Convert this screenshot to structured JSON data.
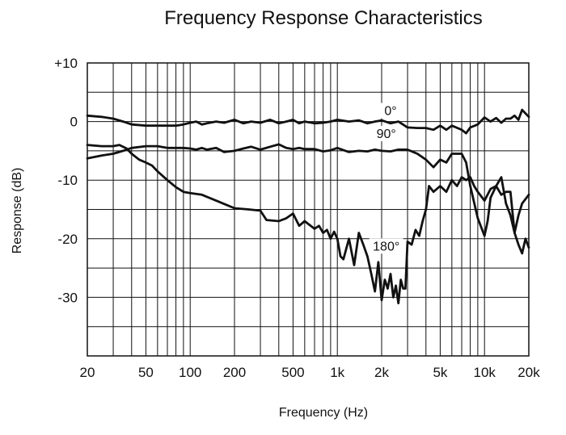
{
  "chart_data": {
    "type": "line",
    "title": "Frequency Response Characteristics",
    "xlabel": "Frequency (Hz)",
    "ylabel": "Response (dB)",
    "x_scale": "log",
    "xlim": [
      20,
      20000
    ],
    "ylim": [
      -40,
      10
    ],
    "grid": true,
    "x_ticks": [
      {
        "value": 20,
        "label": "20"
      },
      {
        "value": 50,
        "label": "50"
      },
      {
        "value": 100,
        "label": "100"
      },
      {
        "value": 200,
        "label": "200"
      },
      {
        "value": 500,
        "label": "500"
      },
      {
        "value": 1000,
        "label": "1k"
      },
      {
        "value": 2000,
        "label": "2k"
      },
      {
        "value": 5000,
        "label": "5k"
      },
      {
        "value": 10000,
        "label": "10k"
      },
      {
        "value": 20000,
        "label": "20k"
      }
    ],
    "y_ticks": [
      {
        "value": 10,
        "label": "+10"
      },
      {
        "value": 0,
        "label": "0"
      },
      {
        "value": -10,
        "label": "-10"
      },
      {
        "value": -20,
        "label": "-20"
      },
      {
        "value": -30,
        "label": "-30"
      }
    ],
    "series": [
      {
        "name": "0°",
        "label_at": [
          2300,
          1.1
        ],
        "points": [
          [
            20,
            1.0
          ],
          [
            25,
            0.8
          ],
          [
            30,
            0.5
          ],
          [
            35,
            0.0
          ],
          [
            40,
            -0.5
          ],
          [
            50,
            -0.7
          ],
          [
            60,
            -0.7
          ],
          [
            70,
            -0.7
          ],
          [
            80,
            -0.7
          ],
          [
            90,
            -0.5
          ],
          [
            100,
            -0.2
          ],
          [
            110,
            0.0
          ],
          [
            120,
            -0.5
          ],
          [
            130,
            -0.3
          ],
          [
            150,
            0.0
          ],
          [
            170,
            -0.2
          ],
          [
            200,
            0.3
          ],
          [
            230,
            -0.3
          ],
          [
            260,
            0.0
          ],
          [
            300,
            -0.2
          ],
          [
            350,
            0.3
          ],
          [
            400,
            -0.3
          ],
          [
            450,
            0.0
          ],
          [
            500,
            0.3
          ],
          [
            550,
            -0.3
          ],
          [
            600,
            0.0
          ],
          [
            700,
            -0.3
          ],
          [
            800,
            -0.2
          ],
          [
            900,
            0.0
          ],
          [
            1000,
            0.3
          ],
          [
            1200,
            0.0
          ],
          [
            1400,
            0.2
          ],
          [
            1600,
            -0.3
          ],
          [
            1800,
            0.0
          ],
          [
            2000,
            0.2
          ],
          [
            2300,
            -0.3
          ],
          [
            2600,
            0.0
          ],
          [
            3000,
            -1.0
          ],
          [
            3500,
            -1.1
          ],
          [
            4000,
            -1.1
          ],
          [
            4500,
            -1.4
          ],
          [
            5000,
            -0.7
          ],
          [
            5500,
            -1.4
          ],
          [
            6000,
            -0.7
          ],
          [
            7000,
            -1.4
          ],
          [
            7500,
            -2.0
          ],
          [
            8000,
            -1.0
          ],
          [
            9000,
            -0.5
          ],
          [
            10000,
            0.7
          ],
          [
            11000,
            0.0
          ],
          [
            12000,
            0.6
          ],
          [
            13000,
            -0.2
          ],
          [
            14000,
            0.5
          ],
          [
            15000,
            0.5
          ],
          [
            16000,
            1.0
          ],
          [
            17000,
            0.3
          ],
          [
            18000,
            2.0
          ],
          [
            20000,
            0.8
          ]
        ]
      },
      {
        "name": "90°",
        "label_at": [
          2150,
          -2.8
        ],
        "points": [
          [
            20,
            -6.3
          ],
          [
            25,
            -5.8
          ],
          [
            30,
            -5.5
          ],
          [
            35,
            -5.0
          ],
          [
            40,
            -4.5
          ],
          [
            50,
            -4.2
          ],
          [
            60,
            -4.2
          ],
          [
            70,
            -4.5
          ],
          [
            80,
            -4.5
          ],
          [
            90,
            -4.5
          ],
          [
            100,
            -4.6
          ],
          [
            110,
            -4.8
          ],
          [
            120,
            -4.5
          ],
          [
            130,
            -4.8
          ],
          [
            150,
            -4.5
          ],
          [
            170,
            -5.2
          ],
          [
            200,
            -5.0
          ],
          [
            230,
            -4.6
          ],
          [
            260,
            -4.3
          ],
          [
            300,
            -4.8
          ],
          [
            350,
            -4.3
          ],
          [
            400,
            -3.9
          ],
          [
            450,
            -4.5
          ],
          [
            500,
            -4.7
          ],
          [
            550,
            -4.5
          ],
          [
            600,
            -4.7
          ],
          [
            700,
            -4.7
          ],
          [
            800,
            -5.1
          ],
          [
            900,
            -4.9
          ],
          [
            1000,
            -4.5
          ],
          [
            1200,
            -5.2
          ],
          [
            1400,
            -5.0
          ],
          [
            1600,
            -5.1
          ],
          [
            1800,
            -4.8
          ],
          [
            2000,
            -5.0
          ],
          [
            2300,
            -5.1
          ],
          [
            2600,
            -4.8
          ],
          [
            3000,
            -4.8
          ],
          [
            3500,
            -5.5
          ],
          [
            4000,
            -6.5
          ],
          [
            4500,
            -7.8
          ],
          [
            5000,
            -6.5
          ],
          [
            5500,
            -7.0
          ],
          [
            6000,
            -5.5
          ],
          [
            7000,
            -5.5
          ],
          [
            7500,
            -7.0
          ],
          [
            8000,
            -11.0
          ],
          [
            9000,
            -16.5
          ],
          [
            10000,
            -19.5
          ],
          [
            10500,
            -17.0
          ],
          [
            11000,
            -13.0
          ],
          [
            12000,
            -11.0
          ],
          [
            13000,
            -9.5
          ],
          [
            14000,
            -14.0
          ],
          [
            15000,
            -16.0
          ],
          [
            16000,
            -19.0
          ],
          [
            17000,
            -21.0
          ],
          [
            18000,
            -22.5
          ],
          [
            19000,
            -20.0
          ],
          [
            20000,
            -21.5
          ]
        ]
      },
      {
        "name": "180°",
        "label_at": [
          2150,
          -22.0
        ],
        "points": [
          [
            20,
            -4.0
          ],
          [
            25,
            -4.2
          ],
          [
            30,
            -4.2
          ],
          [
            33,
            -4.0
          ],
          [
            37,
            -4.6
          ],
          [
            40,
            -5.5
          ],
          [
            45,
            -6.5
          ],
          [
            50,
            -7.0
          ],
          [
            55,
            -7.5
          ],
          [
            60,
            -8.5
          ],
          [
            70,
            -10.0
          ],
          [
            80,
            -11.2
          ],
          [
            90,
            -12.0
          ],
          [
            100,
            -12.2
          ],
          [
            120,
            -12.5
          ],
          [
            150,
            -13.5
          ],
          [
            200,
            -14.8
          ],
          [
            250,
            -15.0
          ],
          [
            300,
            -15.2
          ],
          [
            330,
            -16.8
          ],
          [
            400,
            -17.0
          ],
          [
            450,
            -16.5
          ],
          [
            500,
            -15.7
          ],
          [
            550,
            -17.8
          ],
          [
            600,
            -17.0
          ],
          [
            700,
            -18.3
          ],
          [
            750,
            -17.8
          ],
          [
            800,
            -19.0
          ],
          [
            850,
            -18.5
          ],
          [
            900,
            -20.0
          ],
          [
            950,
            -18.8
          ],
          [
            1000,
            -20.0
          ],
          [
            1050,
            -23.0
          ],
          [
            1100,
            -23.5
          ],
          [
            1200,
            -20.0
          ],
          [
            1300,
            -24.5
          ],
          [
            1400,
            -19.0
          ],
          [
            1500,
            -21.0
          ],
          [
            1600,
            -23.0
          ],
          [
            1700,
            -26.0
          ],
          [
            1800,
            -29.0
          ],
          [
            1900,
            -24.0
          ],
          [
            2000,
            -30.5
          ],
          [
            2100,
            -27.0
          ],
          [
            2200,
            -28.5
          ],
          [
            2300,
            -26.0
          ],
          [
            2400,
            -30.0
          ],
          [
            2500,
            -28.0
          ],
          [
            2600,
            -31.0
          ],
          [
            2700,
            -27.0
          ],
          [
            2800,
            -28.5
          ],
          [
            2900,
            -28.5
          ],
          [
            3000,
            -20.5
          ],
          [
            3200,
            -21.0
          ],
          [
            3400,
            -18.5
          ],
          [
            3600,
            -19.5
          ],
          [
            3800,
            -17.0
          ],
          [
            4000,
            -15.0
          ],
          [
            4200,
            -11.0
          ],
          [
            4500,
            -12.0
          ],
          [
            5000,
            -11.0
          ],
          [
            5500,
            -12.0
          ],
          [
            6000,
            -10.0
          ],
          [
            6500,
            -11.0
          ],
          [
            7000,
            -9.5
          ],
          [
            7500,
            -10.0
          ],
          [
            8000,
            -9.5
          ],
          [
            8500,
            -11.0
          ],
          [
            9000,
            -12.0
          ],
          [
            10000,
            -13.5
          ],
          [
            11000,
            -11.5
          ],
          [
            12000,
            -11.0
          ],
          [
            13000,
            -12.5
          ],
          [
            14000,
            -12.0
          ],
          [
            15000,
            -12.0
          ],
          [
            16000,
            -19.0
          ],
          [
            17000,
            -16.0
          ],
          [
            18000,
            -14.0
          ],
          [
            20000,
            -12.5
          ]
        ]
      }
    ]
  }
}
